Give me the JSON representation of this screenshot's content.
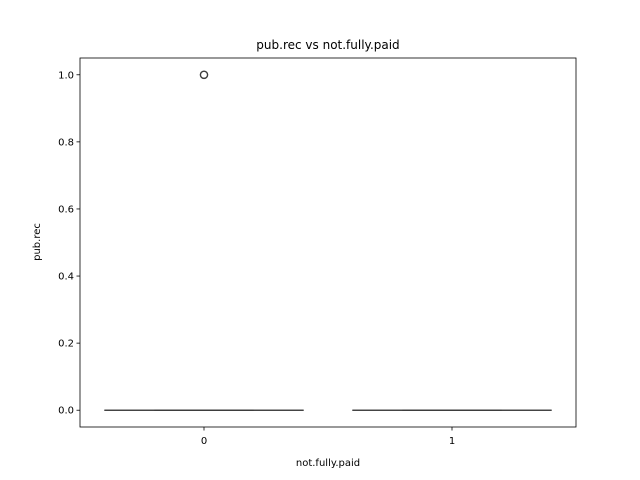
{
  "chart_data": {
    "type": "box",
    "title": "pub.rec vs not.fully.paid",
    "xlabel": "not.fully.paid",
    "ylabel": "pub.rec",
    "categories": [
      "0",
      "1"
    ],
    "ylim": [
      -0.05,
      1.05
    ],
    "yticks": [
      "0.0",
      "0.2",
      "0.4",
      "0.6",
      "0.8",
      "1.0"
    ],
    "grid": false,
    "boxes": [
      {
        "category": "0",
        "min": 0,
        "q1": 0,
        "median": 0,
        "q3": 0,
        "max": 0,
        "outliers": [
          1.0
        ]
      },
      {
        "category": "1",
        "min": 0,
        "q1": 0,
        "median": 0,
        "q3": 0,
        "max": 0,
        "outliers": []
      }
    ],
    "colors": {
      "line": "#3d3d3d",
      "axis": "#000000"
    }
  }
}
